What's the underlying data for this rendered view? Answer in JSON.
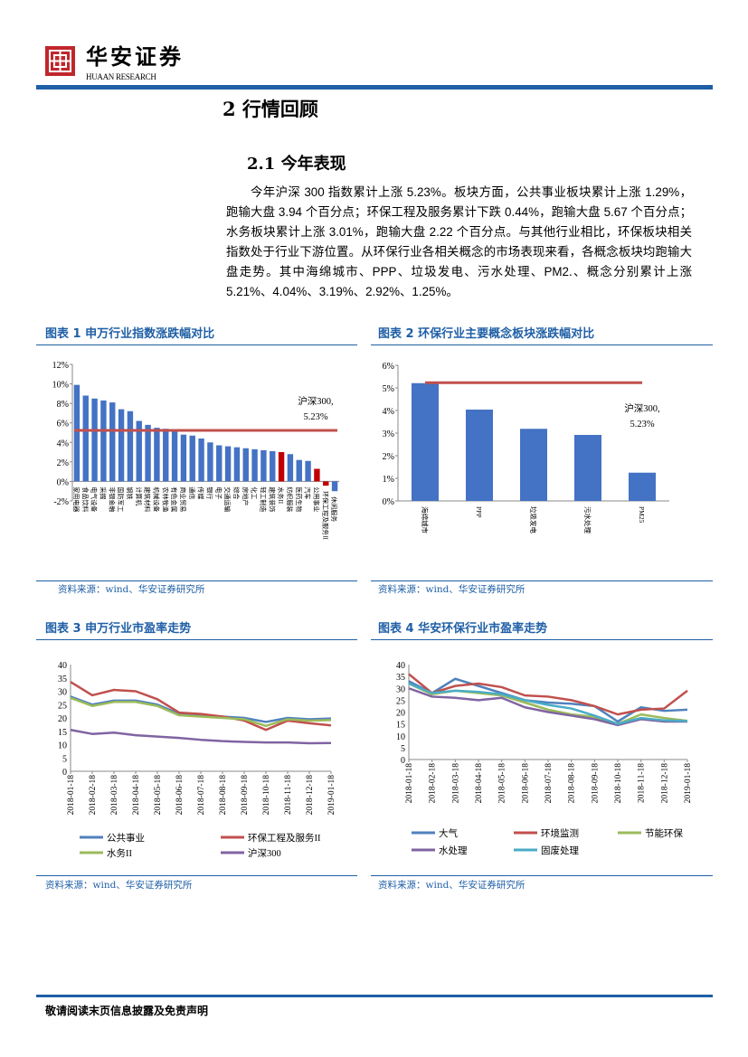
{
  "header": {
    "logo_cn": "华安证券",
    "logo_en": "HUAAN RESEARCH",
    "brand_color": "#1f5fa6",
    "logo_color": "#c0272d"
  },
  "section": {
    "title": "2 行情回顾",
    "subtitle": "2.1 今年表现"
  },
  "paragraph": "今年沪深 300 指数累计上涨 5.23%。板块方面，公共事业板块累计上涨 1.29%，跑输大盘 3.94 个百分点；环保工程及服务累计下跌 0.44%，跑输大盘 5.67 个百分点；水务板块累计上涨 3.01%，跑输大盘 2.22 个百分点。与其他行业相比，环保板块相关指数处于行业下游位置。从环保行业各相关概念的市场表现来看，各概念板块均跑输大盘走势。其中海绵城市、PPP、垃圾发电、污水处理、PM2.、概念分别累计上涨 5.21%、4.04%、3.19%、2.92%、1.25%。",
  "figures": [
    {
      "title": "图表 1 申万行业指数涨跌幅对比",
      "source": "资料来源：wind、华安证券研究所"
    },
    {
      "title": "图表 2 环保行业主要概念板块涨跌幅对比",
      "source": "资料来源：wind、华安证券研究所"
    },
    {
      "title": "图表 3 申万行业市盈率走势",
      "source": "资料来源：wind、华安证券研究所"
    },
    {
      "title": "图表 4 华安环保行业市盈率走势",
      "source": "资料来源：wind、华安证券研究所"
    }
  ],
  "footer": "敬请阅读末页信息披露及免责声明",
  "chart_data": [
    {
      "type": "bar",
      "categories": [
        "家用电器",
        "食品饮料",
        "电气设备",
        "采掘",
        "非银金融",
        "国防军工",
        "钢铁",
        "计算机",
        "建筑材料",
        "机械设备",
        "农林牧渔",
        "有色金属",
        "商业贸易",
        "通信",
        "传媒",
        "银行",
        "电子",
        "交通运输",
        "综合",
        "房地产",
        "化工",
        "轻工制造",
        "建筑装饰",
        "水务II",
        "纺织服装",
        "医药生物",
        "汽车",
        "公用事业",
        "环保工程及服务II",
        "休闲服务"
      ],
      "values": [
        9.9,
        8.8,
        8.5,
        8.3,
        8.1,
        7.4,
        7.2,
        6.2,
        5.8,
        5.5,
        5.4,
        5.1,
        4.8,
        4.7,
        4.4,
        4.0,
        3.7,
        3.6,
        3.5,
        3.4,
        3.3,
        3.2,
        3.1,
        3.01,
        2.8,
        2.2,
        2.1,
        1.29,
        -0.44,
        -1.0
      ],
      "highlight": [
        "水务II",
        "公用事业",
        "环保工程及服务II"
      ],
      "bar_color": "#4472c4",
      "highlight_color": "#c00000",
      "reference_line": {
        "value": 5.23,
        "label": [
          "沪深300,",
          "5.23%"
        ],
        "color": "#c0504d"
      },
      "yticks": [
        "12%",
        "10%",
        "8%",
        "6%",
        "4%",
        "2%",
        "0%",
        "-2%"
      ],
      "ylim": [
        -2,
        12
      ]
    },
    {
      "type": "bar",
      "categories": [
        "海绵城市",
        "PPP",
        "垃圾发电",
        "污水处理",
        "PM25"
      ],
      "values": [
        5.21,
        4.04,
        3.19,
        2.92,
        1.25
      ],
      "bar_color": "#4472c4",
      "reference_line": {
        "value": 5.23,
        "label": [
          "沪深300,",
          "5.23%"
        ],
        "color": "#c0504d"
      },
      "yticks": [
        "6%",
        "5%",
        "4%",
        "3%",
        "2%",
        "1%",
        "0%"
      ],
      "ylim": [
        0,
        6
      ]
    },
    {
      "type": "line",
      "x": [
        "2018-01-18",
        "2018-02-18",
        "2018-03-18",
        "2018-04-18",
        "2018-05-18",
        "2018-06-18",
        "2018-07-18",
        "2018-08-18",
        "2018-09-18",
        "2018-10-18",
        "2018-11-18",
        "2018-12-18",
        "2019-01-18"
      ],
      "ylim": [
        0,
        40
      ],
      "yticks": [
        40,
        35,
        30,
        25,
        20,
        15,
        10,
        5,
        0
      ],
      "legend": "bottom",
      "series": [
        {
          "name": "公共事业",
          "color": "#4f81bd",
          "values": [
            28,
            25,
            26.5,
            26.5,
            25,
            21.5,
            21,
            20.5,
            20,
            18.5,
            20,
            19.5,
            19.8
          ]
        },
        {
          "name": "环保工程及服务II",
          "color": "#c0504d",
          "values": [
            33.5,
            28.5,
            30.5,
            30,
            27,
            22,
            21.5,
            20.5,
            19,
            15.5,
            19,
            18,
            17.2
          ]
        },
        {
          "name": "水务II",
          "color": "#9bbb59",
          "values": [
            27.5,
            24.5,
            26,
            26,
            24.5,
            21,
            20.5,
            20,
            19.5,
            17,
            19.5,
            19,
            19.2
          ]
        },
        {
          "name": "沪深300",
          "color": "#8064a2",
          "values": [
            15.5,
            14,
            14.5,
            13.5,
            13,
            12.5,
            11.8,
            11.3,
            11,
            10.8,
            10.8,
            10.5,
            10.6
          ]
        }
      ]
    },
    {
      "type": "line",
      "x": [
        "2018-01-18",
        "2018-02-18",
        "2018-03-18",
        "2018-04-18",
        "2018-05-18",
        "2018-06-18",
        "2018-07-18",
        "2018-08-18",
        "2018-09-18",
        "2018-10-18",
        "2018-11-18",
        "2018-12-18",
        "2019-01-18"
      ],
      "ylim": [
        0,
        40
      ],
      "yticks": [
        40,
        35,
        30,
        25,
        20,
        15,
        10,
        5,
        0
      ],
      "legend": "bottom",
      "series": [
        {
          "name": "大气",
          "color": "#4f81bd",
          "values": [
            33,
            28,
            34,
            31,
            28,
            25,
            24,
            23.5,
            22.5,
            16,
            22,
            20.5,
            21
          ]
        },
        {
          "name": "环境监测",
          "color": "#c0504d",
          "values": [
            36,
            28,
            31,
            32,
            30.5,
            27,
            26.5,
            25,
            22.5,
            19,
            21,
            21.5,
            29
          ]
        },
        {
          "name": "节能环保",
          "color": "#9bbb59",
          "values": [
            32,
            27.5,
            29,
            28,
            27,
            24,
            21,
            19,
            18,
            15,
            19,
            17.5,
            16.3
          ]
        },
        {
          "name": "水处理",
          "color": "#8064a2",
          "values": [
            30,
            26.5,
            26,
            25,
            26,
            22,
            20,
            18.5,
            17,
            14.5,
            17,
            16,
            16
          ]
        },
        {
          "name": "固废处理",
          "color": "#4bacc6",
          "values": [
            32,
            28,
            29,
            28.5,
            27.5,
            25,
            23,
            21.5,
            18.5,
            15,
            17.5,
            16.5,
            16.2
          ]
        }
      ]
    }
  ]
}
